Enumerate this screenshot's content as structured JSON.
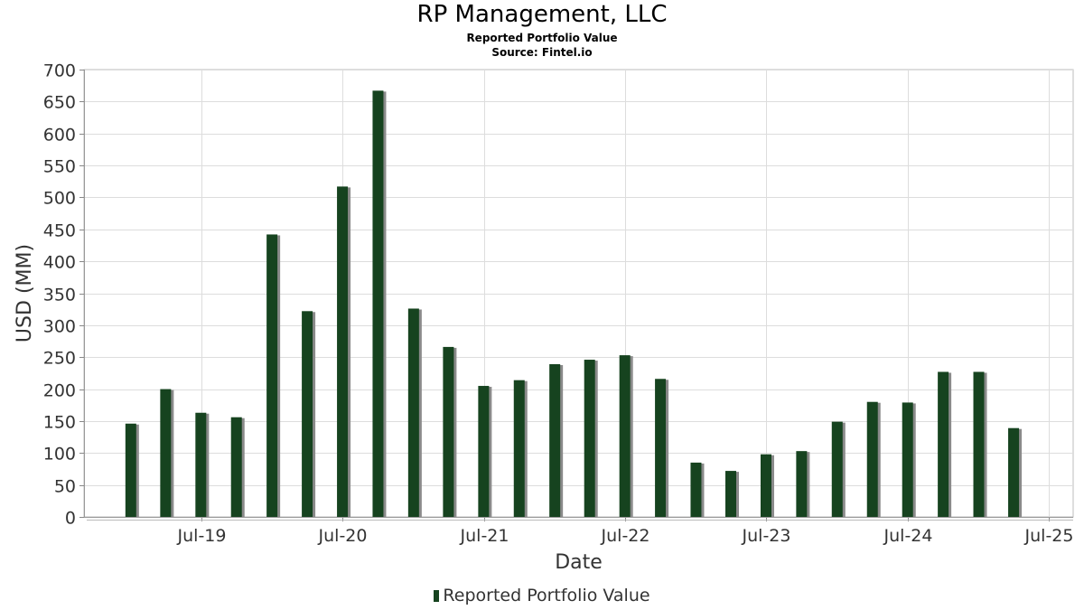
{
  "title": "RP Management, LLC",
  "subtitle": "Reported Portfolio Value",
  "source": "Source: Fintel.io",
  "chart_data": {
    "type": "bar",
    "xlabel": "Date",
    "ylabel": "USD (MM)",
    "ylim": [
      0,
      700
    ],
    "y_ticks": [
      0,
      50,
      100,
      150,
      200,
      250,
      300,
      350,
      400,
      450,
      500,
      550,
      600,
      650,
      700
    ],
    "x_ticks": [
      {
        "label": "Jul-19",
        "date": "2019-07-01"
      },
      {
        "label": "Jul-20",
        "date": "2020-07-01"
      },
      {
        "label": "Jul-21",
        "date": "2021-07-01"
      },
      {
        "label": "Jul-22",
        "date": "2022-07-01"
      },
      {
        "label": "Jul-23",
        "date": "2023-07-01"
      },
      {
        "label": "Jul-24",
        "date": "2024-07-01"
      },
      {
        "label": "Jul-25",
        "date": "2025-07-01"
      }
    ],
    "x_range": [
      "2018-09-01",
      "2025-09-01"
    ],
    "grid": true,
    "legend_position": "bottom-center",
    "bar_color": "#16431f",
    "series": [
      {
        "name": "Reported Portfolio Value",
        "points": [
          {
            "x": "2018-12-31",
            "y": 146
          },
          {
            "x": "2019-03-31",
            "y": 200
          },
          {
            "x": "2019-06-30",
            "y": 163
          },
          {
            "x": "2019-09-30",
            "y": 156
          },
          {
            "x": "2019-12-31",
            "y": 442
          },
          {
            "x": "2020-03-31",
            "y": 322
          },
          {
            "x": "2020-06-30",
            "y": 517
          },
          {
            "x": "2020-09-30",
            "y": 667
          },
          {
            "x": "2020-12-31",
            "y": 326
          },
          {
            "x": "2021-03-31",
            "y": 266
          },
          {
            "x": "2021-06-30",
            "y": 205
          },
          {
            "x": "2021-09-30",
            "y": 214
          },
          {
            "x": "2021-12-31",
            "y": 239
          },
          {
            "x": "2022-03-31",
            "y": 246
          },
          {
            "x": "2022-06-30",
            "y": 253
          },
          {
            "x": "2022-09-30",
            "y": 216
          },
          {
            "x": "2022-12-31",
            "y": 85
          },
          {
            "x": "2023-03-31",
            "y": 72
          },
          {
            "x": "2023-06-30",
            "y": 98
          },
          {
            "x": "2023-09-30",
            "y": 103
          },
          {
            "x": "2023-12-31",
            "y": 149
          },
          {
            "x": "2024-03-31",
            "y": 180
          },
          {
            "x": "2024-06-30",
            "y": 179
          },
          {
            "x": "2024-09-30",
            "y": 227
          },
          {
            "x": "2024-12-31",
            "y": 227
          },
          {
            "x": "2025-03-31",
            "y": 139
          }
        ]
      }
    ]
  }
}
